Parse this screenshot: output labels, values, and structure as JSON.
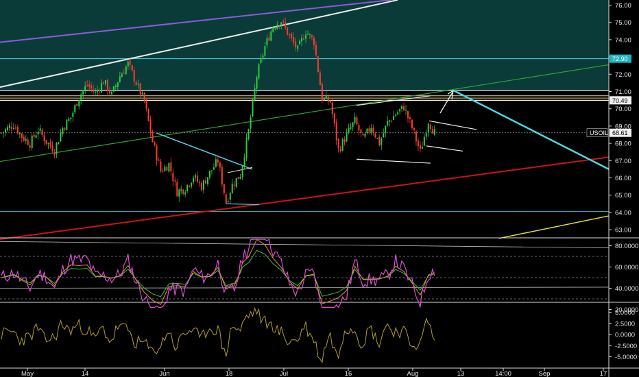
{
  "symbol_badge": "USOIL",
  "chart_data": [
    {
      "type": "candlestick",
      "panel": "price",
      "y_axis": {
        "ticks": [
          "76.00",
          "75.00",
          "74.00",
          "73.00",
          "72.00",
          "71.00",
          "70.00",
          "69.00",
          "68.00",
          "67.00",
          "66.00",
          "65.00",
          "64.00",
          "63.00"
        ],
        "range": [
          62.4,
          76.4
        ]
      },
      "x_axis": {
        "ticks": [
          "May",
          "14",
          "Jun",
          "18",
          "Jul",
          "16",
          "Aug",
          "13",
          "14:00",
          "Sep",
          "17"
        ]
      },
      "labels": {
        "last_price": "68.61",
        "level_72_90": "72.90",
        "level_70_49": "70.49"
      },
      "horizontal_levels": [
        72.9,
        71.05,
        70.75,
        70.49,
        70.62,
        68.61,
        64.05
      ],
      "close_path": [
        {
          "t": 0,
          "c": 68.6
        },
        {
          "t": 6,
          "c": 69.1
        },
        {
          "t": 10,
          "c": 68.4
        },
        {
          "t": 14,
          "c": 68.0
        },
        {
          "t": 18,
          "c": 68.8
        },
        {
          "t": 22,
          "c": 68.1
        },
        {
          "t": 26,
          "c": 67.6
        },
        {
          "t": 30,
          "c": 68.9
        },
        {
          "t": 34,
          "c": 69.5
        },
        {
          "t": 38,
          "c": 70.7
        },
        {
          "t": 42,
          "c": 71.4
        },
        {
          "t": 46,
          "c": 70.9
        },
        {
          "t": 50,
          "c": 71.6
        },
        {
          "t": 54,
          "c": 70.8
        },
        {
          "t": 58,
          "c": 71.9
        },
        {
          "t": 62,
          "c": 72.6
        },
        {
          "t": 66,
          "c": 71.5
        },
        {
          "t": 70,
          "c": 70.4
        },
        {
          "t": 74,
          "c": 68.1
        },
        {
          "t": 78,
          "c": 66.4
        },
        {
          "t": 82,
          "c": 66.8
        },
        {
          "t": 86,
          "c": 65.2
        },
        {
          "t": 90,
          "c": 65.4
        },
        {
          "t": 94,
          "c": 66.1
        },
        {
          "t": 98,
          "c": 65.5
        },
        {
          "t": 102,
          "c": 66.3
        },
        {
          "t": 106,
          "c": 67.0
        },
        {
          "t": 110,
          "c": 64.6
        },
        {
          "t": 113,
          "c": 65.6
        },
        {
          "t": 117,
          "c": 66.2
        },
        {
          "t": 121,
          "c": 68.7
        },
        {
          "t": 125,
          "c": 71.9
        },
        {
          "t": 129,
          "c": 73.6
        },
        {
          "t": 133,
          "c": 74.8
        },
        {
          "t": 137,
          "c": 75.1
        },
        {
          "t": 141,
          "c": 74.2
        },
        {
          "t": 145,
          "c": 73.4
        },
        {
          "t": 149,
          "c": 74.5
        },
        {
          "t": 153,
          "c": 73.9
        },
        {
          "t": 157,
          "c": 70.6
        },
        {
          "t": 161,
          "c": 70.4
        },
        {
          "t": 165,
          "c": 67.6
        },
        {
          "t": 169,
          "c": 68.5
        },
        {
          "t": 173,
          "c": 69.3
        },
        {
          "t": 177,
          "c": 68.2
        },
        {
          "t": 181,
          "c": 69.0
        },
        {
          "t": 185,
          "c": 68.0
        },
        {
          "t": 189,
          "c": 69.2
        },
        {
          "t": 193,
          "c": 69.7
        },
        {
          "t": 197,
          "c": 70.1
        },
        {
          "t": 201,
          "c": 68.9
        },
        {
          "t": 205,
          "c": 67.5
        },
        {
          "t": 209,
          "c": 69.3
        },
        {
          "t": 212,
          "c": 68.61
        }
      ],
      "rsi_like_panel": {
        "ticks": [
          "80.0000",
          "60.0000",
          "40.0000",
          "20.0000"
        ],
        "range": [
          10,
          88
        ]
      },
      "oscillator_panel": {
        "ticks": [
          "5.0000",
          "2.5000",
          "0.0000",
          "-2.5000",
          "-5.0000"
        ],
        "range": [
          -7,
          7
        ]
      }
    }
  ],
  "colors": {
    "bull": "#2ecc40",
    "bear": "#ff3b2f",
    "zone": "#0a3b39",
    "cyan": "#4fd6e6",
    "green": "#2fa62f",
    "red": "#d11212",
    "yellow": "#e6e61e",
    "purple": "#8e5ad9",
    "white": "#eeeeee"
  }
}
